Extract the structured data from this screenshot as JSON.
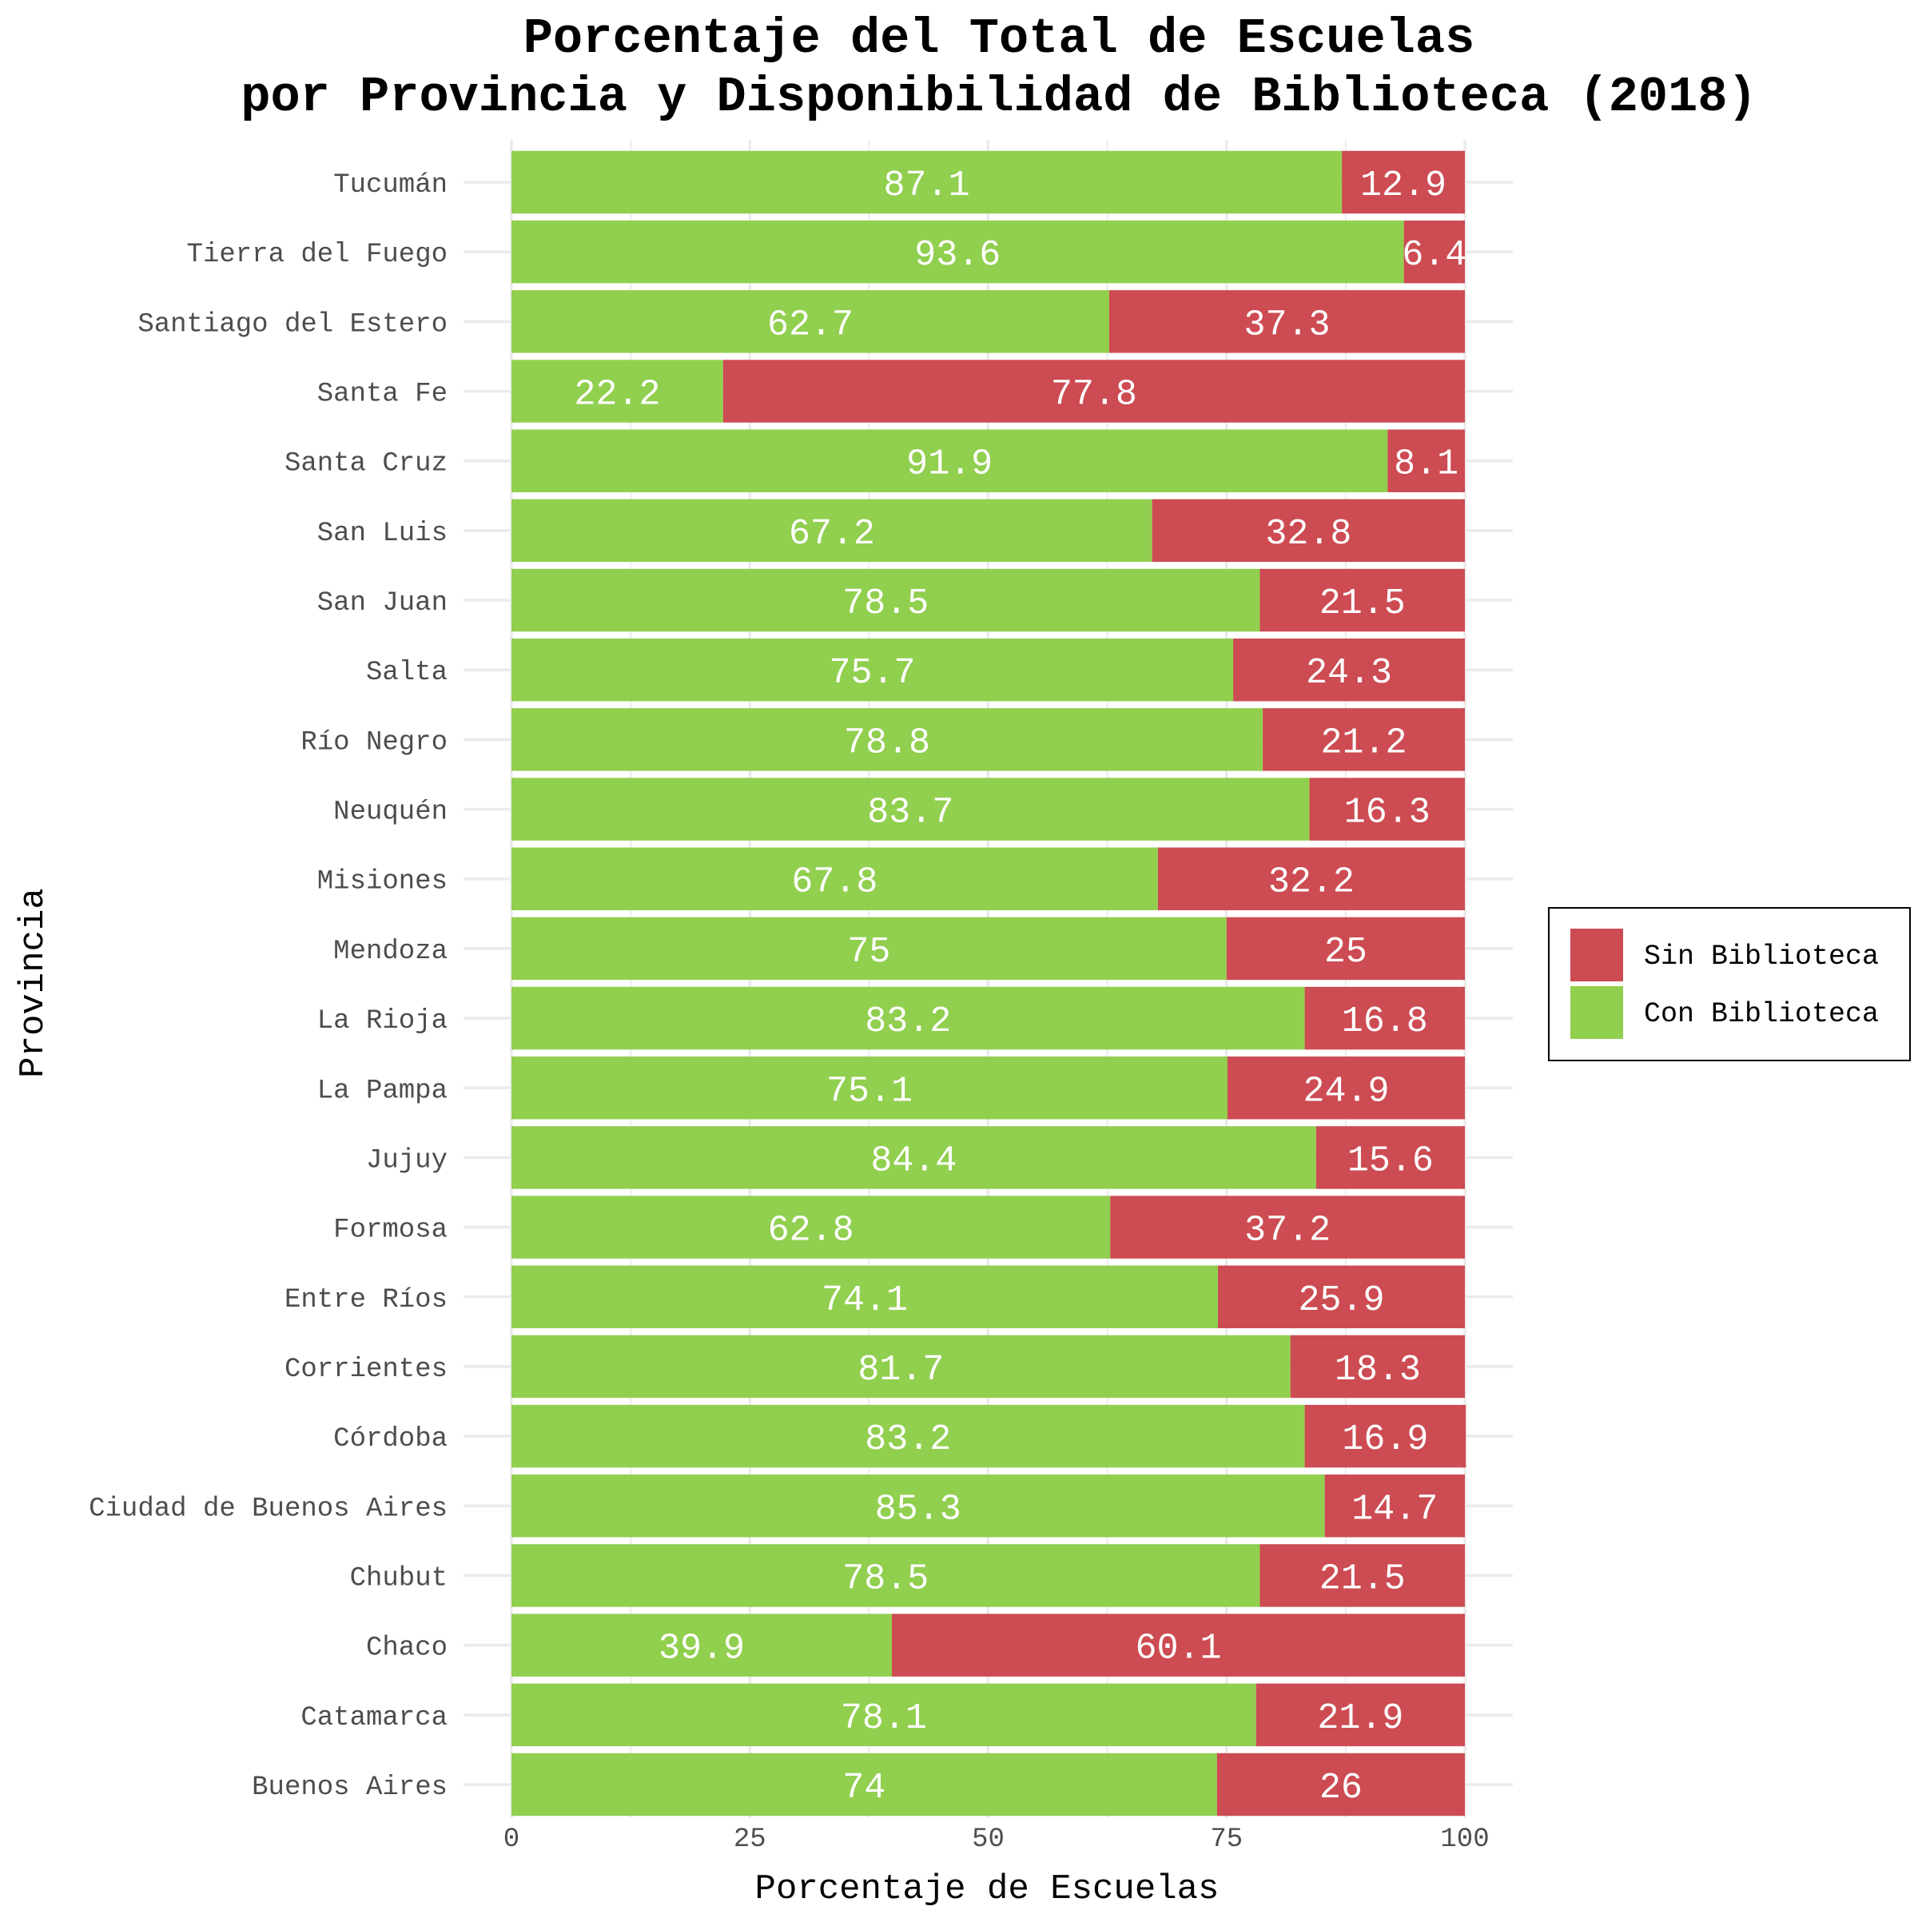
{
  "chart_data": {
    "type": "bar",
    "orientation": "horizontal",
    "stacked": true,
    "title": [
      "Porcentaje del Total de Escuelas",
      "por Provincia y Disponibilidad de Biblioteca (2018)"
    ],
    "xlabel": "Porcentaje de Escuelas",
    "ylabel": "Provincia",
    "xlim": [
      0,
      100
    ],
    "x_ticks": [
      0,
      25,
      50,
      75,
      100
    ],
    "grid": true,
    "legend_position": "right",
    "categories": [
      "Buenos Aires",
      "Catamarca",
      "Chaco",
      "Chubut",
      "Ciudad de Buenos Aires",
      "Córdoba",
      "Corrientes",
      "Entre Ríos",
      "Formosa",
      "Jujuy",
      "La Pampa",
      "La Rioja",
      "Mendoza",
      "Misiones",
      "Neuquén",
      "Río Negro",
      "Salta",
      "San Juan",
      "San Luis",
      "Santa Cruz",
      "Santa Fe",
      "Santiago del Estero",
      "Tierra del Fuego",
      "Tucumán"
    ],
    "series": [
      {
        "name": "Con Biblioteca",
        "color": "#91cf4f",
        "values": [
          74,
          78.1,
          39.9,
          78.5,
          85.3,
          83.2,
          81.7,
          74.1,
          62.8,
          84.4,
          75.1,
          83.2,
          75,
          67.8,
          83.7,
          78.8,
          75.7,
          78.5,
          67.2,
          91.9,
          22.2,
          62.7,
          93.6,
          87.1
        ]
      },
      {
        "name": "Sin Biblioteca",
        "color": "#cd4b52",
        "values": [
          26,
          21.9,
          60.1,
          21.5,
          14.7,
          16.9,
          18.3,
          25.9,
          37.2,
          15.6,
          24.9,
          16.8,
          25,
          32.2,
          16.3,
          21.2,
          24.3,
          21.5,
          32.8,
          8.1,
          77.8,
          37.3,
          6.4,
          12.9
        ]
      }
    ],
    "legend_order": [
      "Sin Biblioteca",
      "Con Biblioteca"
    ]
  }
}
